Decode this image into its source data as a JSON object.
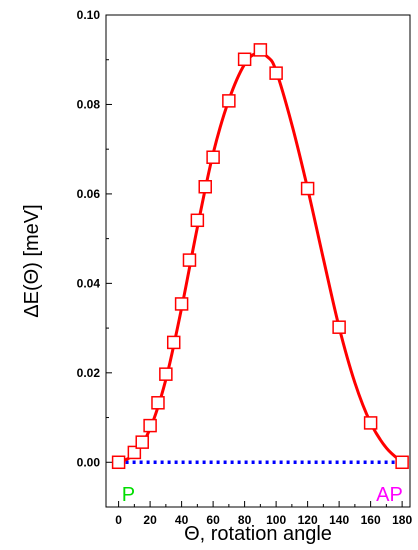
{
  "chart_data": {
    "type": "line",
    "xlabel": "Θ, rotation angle",
    "ylabel": "ΔE(Θ)  [meV]",
    "xlim": [
      -8,
      185
    ],
    "ylim": [
      -0.01,
      0.1
    ],
    "x_ticks": [
      0,
      20,
      40,
      60,
      80,
      100,
      120,
      140,
      160,
      180
    ],
    "y_ticks": [
      0.0,
      0.02,
      0.04,
      0.06,
      0.08,
      0.1
    ],
    "y_tick_labels": [
      "0.00",
      "0.02",
      "0.04",
      "0.06",
      "0.08",
      "0.10"
    ],
    "grid": false,
    "series": [
      {
        "marker": "open-square",
        "color": "#ff0000",
        "x": [
          0,
          10,
          15,
          20,
          25,
          30,
          35,
          40,
          45,
          50,
          55,
          60,
          70,
          80,
          90,
          100,
          120,
          140,
          160,
          180
        ],
        "y": [
          0.0,
          0.0022,
          0.0045,
          0.0082,
          0.0133,
          0.0197,
          0.0268,
          0.0354,
          0.0452,
          0.0541,
          0.0616,
          0.0682,
          0.0808,
          0.0901,
          0.0922,
          0.087,
          0.0612,
          0.0302,
          0.0088,
          0.0
        ]
      },
      {
        "style": "fitted-curve",
        "color": "#ff0000",
        "x": [
          0,
          10,
          20,
          30,
          40,
          50,
          60,
          70,
          80,
          88,
          95,
          100,
          110,
          120,
          130,
          140,
          150,
          160,
          170,
          180
        ],
        "y": [
          0.0,
          0.0018,
          0.0075,
          0.0185,
          0.0345,
          0.0525,
          0.069,
          0.081,
          0.089,
          0.0915,
          0.0905,
          0.0875,
          0.0755,
          0.0612,
          0.0455,
          0.0302,
          0.0178,
          0.0088,
          0.0032,
          0.0
        ]
      },
      {
        "style": "dotted",
        "color": "#0000ff",
        "x": [
          0,
          180
        ],
        "y": [
          0.0,
          0.0
        ]
      }
    ],
    "annotations": [
      {
        "text": "P",
        "x": 2,
        "y": -0.0055,
        "color": "#00dd00"
      },
      {
        "text": "AP",
        "x": 172,
        "y": -0.0055,
        "color": "#ff00ff"
      }
    ]
  }
}
